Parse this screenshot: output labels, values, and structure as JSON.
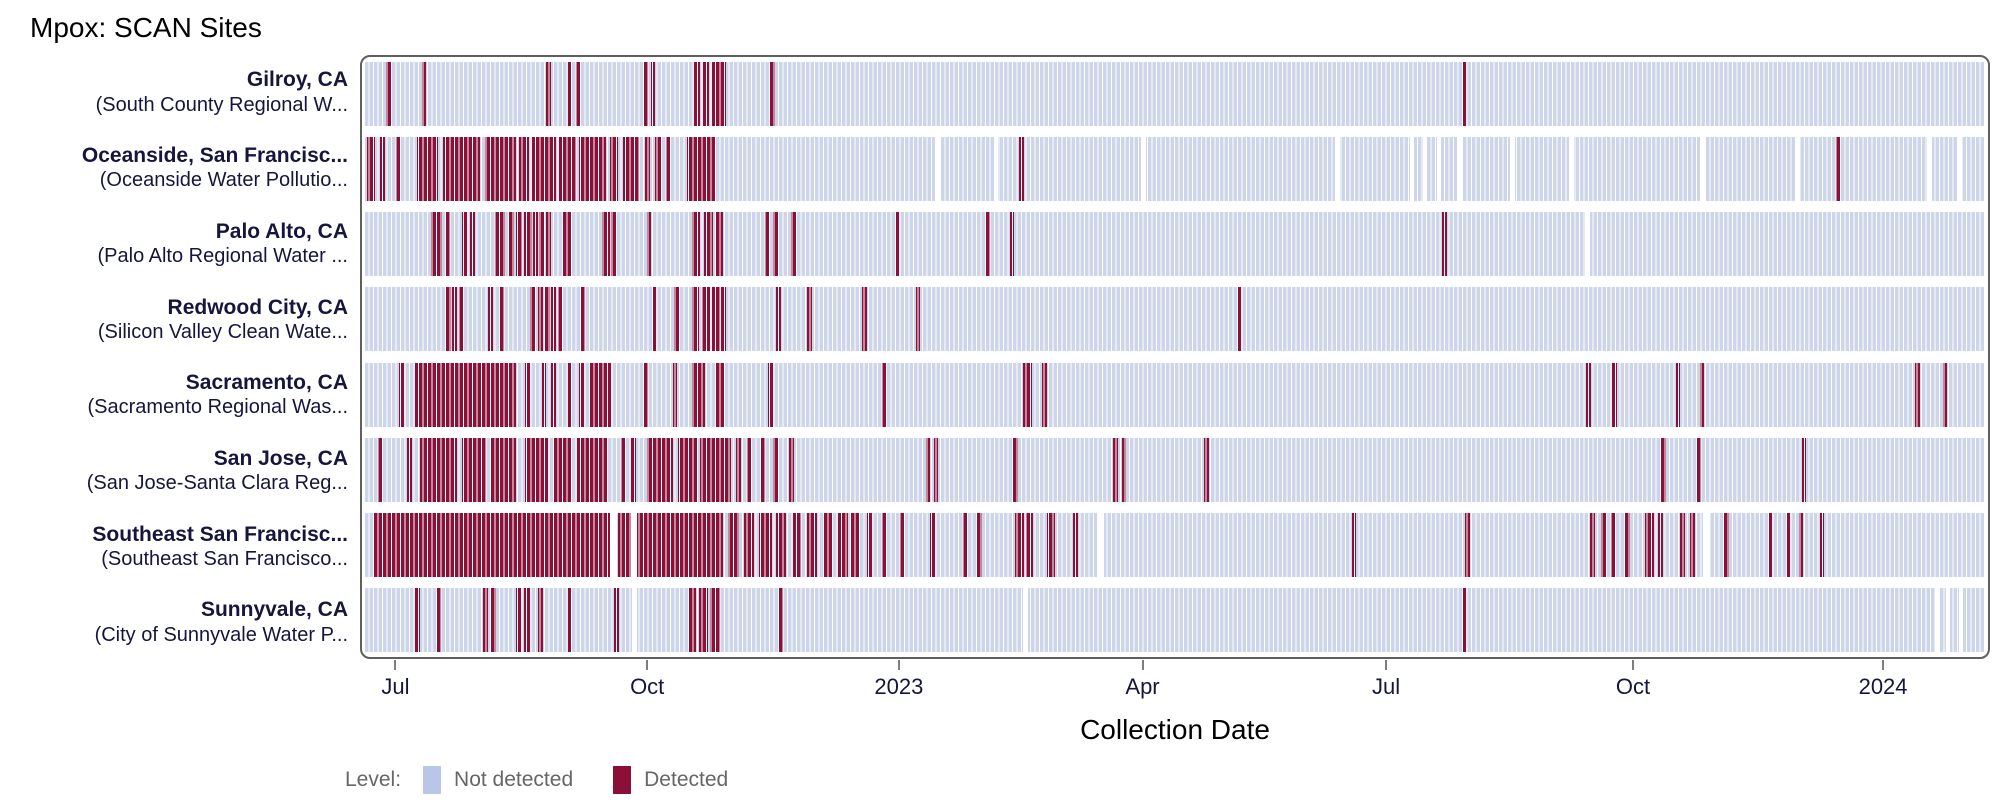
{
  "title": "Mpox: SCAN Sites",
  "xlabel": "Collection Date",
  "legend": {
    "label": "Level:",
    "items": [
      {
        "name": "Not detected",
        "color": "#b9c6e8"
      },
      {
        "name": "Detected",
        "color": "#8a1038"
      }
    ]
  },
  "colors": {
    "not_detected_strip": "#ccd5ea",
    "detected": "#8a1038",
    "missing": "#ffffff",
    "label_text": "#15153d",
    "border": "#5f5f5f"
  },
  "chart_data": {
    "type": "heatmap",
    "title": "Mpox: SCAN Sites",
    "xlabel": "Collection Date",
    "x_axis": {
      "range_note": "daily samples, ~Jun 2022 to ~Feb 2024",
      "ticks": [
        {
          "label": "Jul",
          "pos_pct": 2.0
        },
        {
          "label": "Oct",
          "pos_pct": 17.5
        },
        {
          "label": "2023",
          "pos_pct": 33.0
        },
        {
          "label": "Apr",
          "pos_pct": 48.0
        },
        {
          "label": "Jul",
          "pos_pct": 63.0
        },
        {
          "label": "Oct",
          "pos_pct": 78.2
        },
        {
          "label": "2024",
          "pos_pct": 93.6
        }
      ]
    },
    "legend_entries": [
      "Not detected",
      "Detected"
    ],
    "rows": [
      {
        "site": "Gilroy, CA",
        "facility": "(South County Regional W...",
        "detected_pct": [
          [
            1.3,
            0.28
          ],
          [
            3.5,
            0.28
          ],
          [
            11.2,
            0.28
          ],
          [
            12.5,
            0.28
          ],
          [
            13.0,
            0.28
          ],
          [
            17.2,
            0.28
          ],
          [
            17.65,
            0.28
          ],
          [
            20.3,
            0.35
          ],
          [
            20.85,
            0.4
          ],
          [
            21.4,
            0.55
          ],
          [
            22.0,
            0.3
          ],
          [
            25.0,
            0.28
          ],
          [
            67.7,
            0.28
          ]
        ],
        "missing_pct": []
      },
      {
        "site": "Oceanside, San Francisc...",
        "facility": "(Oceanside Water Pollutio...",
        "detected_pct": [
          [
            0.1,
            0.5
          ],
          [
            0.9,
            0.35
          ],
          [
            1.9,
            0.3
          ],
          [
            3.2,
            1.3
          ],
          [
            4.8,
            2.3
          ],
          [
            7.4,
            1.9
          ],
          [
            9.5,
            0.6
          ],
          [
            10.3,
            1.5
          ],
          [
            12.0,
            1.0
          ],
          [
            13.2,
            1.7
          ],
          [
            15.1,
            0.5
          ],
          [
            15.9,
            1.0
          ],
          [
            17.3,
            0.3
          ],
          [
            17.9,
            0.45
          ],
          [
            18.6,
            0.3
          ],
          [
            19.9,
            1.7
          ],
          [
            40.4,
            0.28
          ],
          [
            90.8,
            0.28
          ]
        ],
        "missing_pct": [
          [
            35.2,
            0.3
          ],
          [
            38.8,
            0.3
          ],
          [
            47.9,
            0.3
          ],
          [
            59.9,
            0.3
          ],
          [
            64.5,
            0.25
          ],
          [
            65.3,
            0.25
          ],
          [
            66.2,
            0.25
          ],
          [
            67.4,
            0.3
          ],
          [
            70.7,
            0.3
          ],
          [
            74.3,
            0.3
          ],
          [
            82.4,
            0.3
          ],
          [
            88.3,
            0.3
          ],
          [
            96.4,
            0.3
          ],
          [
            98.3,
            0.3
          ]
        ]
      },
      {
        "site": "Palo Alto, CA",
        "facility": "(Palo Alto Regional Water ...",
        "detected_pct": [
          [
            4.1,
            0.28
          ],
          [
            4.45,
            0.28
          ],
          [
            4.95,
            0.28
          ],
          [
            6.0,
            0.28
          ],
          [
            6.5,
            0.28
          ],
          [
            8.0,
            0.28
          ],
          [
            8.35,
            0.28
          ],
          [
            8.9,
            0.3
          ],
          [
            9.3,
            0.4
          ],
          [
            9.8,
            0.5
          ],
          [
            10.4,
            0.3
          ],
          [
            10.75,
            0.3
          ],
          [
            11.2,
            0.3
          ],
          [
            12.2,
            0.5
          ],
          [
            14.6,
            0.5
          ],
          [
            15.2,
            0.3
          ],
          [
            17.4,
            0.28
          ],
          [
            20.2,
            0.5
          ],
          [
            20.9,
            0.6
          ],
          [
            21.6,
            0.5
          ],
          [
            24.7,
            0.28
          ],
          [
            25.2,
            0.28
          ],
          [
            26.3,
            0.28
          ],
          [
            32.7,
            0.28
          ],
          [
            38.3,
            0.28
          ],
          [
            39.8,
            0.28
          ],
          [
            66.5,
            0.28
          ]
        ],
        "missing_pct": [
          [
            75.3,
            0.3
          ]
        ]
      },
      {
        "site": "Redwood City, CA",
        "facility": "(Silicon Valley Clean Wate...",
        "detected_pct": [
          [
            5.0,
            0.3
          ],
          [
            5.4,
            0.3
          ],
          [
            5.8,
            0.3
          ],
          [
            7.6,
            0.28
          ],
          [
            8.3,
            0.28
          ],
          [
            10.2,
            0.28
          ],
          [
            10.7,
            0.3
          ],
          [
            11.1,
            0.3
          ],
          [
            11.5,
            0.3
          ],
          [
            11.9,
            0.3
          ],
          [
            13.3,
            0.28
          ],
          [
            17.7,
            0.28
          ],
          [
            19.1,
            0.28
          ],
          [
            20.2,
            0.4
          ],
          [
            20.8,
            0.5
          ],
          [
            21.4,
            0.5
          ],
          [
            22.0,
            0.3
          ],
          [
            25.4,
            0.28
          ],
          [
            27.3,
            0.28
          ],
          [
            30.7,
            0.28
          ],
          [
            34.0,
            0.28
          ],
          [
            53.8,
            0.28
          ]
        ],
        "missing_pct": []
      },
      {
        "site": "Sacramento, CA",
        "facility": "(Sacramento Regional Was...",
        "detected_pct": [
          [
            2.1,
            0.28
          ],
          [
            3.1,
            6.2
          ],
          [
            9.9,
            0.3
          ],
          [
            10.9,
            0.3
          ],
          [
            11.5,
            0.3
          ],
          [
            12.5,
            0.3
          ],
          [
            13.2,
            0.3
          ],
          [
            13.8,
            1.4
          ],
          [
            17.2,
            0.28
          ],
          [
            19.0,
            0.28
          ],
          [
            20.2,
            0.8
          ],
          [
            21.6,
            0.55
          ],
          [
            24.9,
            0.28
          ],
          [
            31.9,
            0.28
          ],
          [
            40.6,
            0.55
          ],
          [
            41.8,
            0.28
          ],
          [
            75.4,
            0.28
          ],
          [
            77.0,
            0.28
          ],
          [
            80.9,
            0.28
          ],
          [
            82.4,
            0.28
          ],
          [
            95.7,
            0.28
          ],
          [
            97.4,
            0.28
          ]
        ],
        "missing_pct": []
      },
      {
        "site": "San Jose, CA",
        "facility": "(San Jose-Santa Clara Reg...",
        "detected_pct": [
          [
            0.8,
            0.28
          ],
          [
            2.6,
            0.3
          ],
          [
            3.4,
            2.3
          ],
          [
            6.0,
            1.5
          ],
          [
            7.7,
            1.6
          ],
          [
            9.9,
            1.4
          ],
          [
            11.6,
            1.2
          ],
          [
            13.1,
            1.9
          ],
          [
            15.8,
            0.3
          ],
          [
            16.4,
            0.3
          ],
          [
            17.4,
            1.6
          ],
          [
            19.3,
            1.2
          ],
          [
            20.7,
            1.9
          ],
          [
            22.9,
            0.3
          ],
          [
            23.6,
            0.3
          ],
          [
            24.4,
            0.3
          ],
          [
            25.2,
            0.3
          ],
          [
            26.2,
            0.3
          ],
          [
            34.6,
            0.28
          ],
          [
            35.1,
            0.28
          ],
          [
            40.0,
            0.28
          ],
          [
            46.2,
            0.28
          ],
          [
            46.7,
            0.28
          ],
          [
            51.8,
            0.28
          ],
          [
            80.0,
            0.28
          ],
          [
            82.2,
            0.28
          ],
          [
            88.7,
            0.28
          ]
        ],
        "missing_pct": []
      },
      {
        "site": "Southeast San Francisc...",
        "facility": "(Southeast San Francisco...",
        "detected_pct": [
          [
            0.5,
            14.6
          ],
          [
            15.6,
            0.8
          ],
          [
            16.8,
            5.3
          ],
          [
            22.4,
            0.7
          ],
          [
            23.4,
            0.6
          ],
          [
            24.3,
            0.8
          ],
          [
            25.4,
            0.6
          ],
          [
            26.4,
            0.5
          ],
          [
            27.3,
            0.6
          ],
          [
            28.3,
            0.5
          ],
          [
            29.2,
            0.6
          ],
          [
            30.0,
            0.5
          ],
          [
            31.0,
            0.3
          ],
          [
            31.9,
            0.3
          ],
          [
            33.0,
            0.3
          ],
          [
            34.9,
            0.3
          ],
          [
            36.9,
            0.3
          ],
          [
            37.8,
            0.3
          ],
          [
            40.1,
            0.55
          ],
          [
            40.8,
            0.45
          ],
          [
            42.1,
            0.5
          ],
          [
            43.7,
            0.3
          ],
          [
            60.9,
            0.28
          ],
          [
            67.9,
            0.28
          ],
          [
            75.6,
            0.3
          ],
          [
            76.3,
            0.3
          ],
          [
            76.9,
            0.3
          ],
          [
            77.8,
            0.3
          ],
          [
            79.0,
            0.55
          ],
          [
            79.8,
            0.3
          ],
          [
            81.2,
            0.3
          ],
          [
            81.8,
            0.3
          ],
          [
            83.9,
            0.3
          ],
          [
            86.6,
            0.28
          ],
          [
            87.7,
            0.28
          ],
          [
            88.5,
            0.28
          ],
          [
            89.8,
            0.28
          ]
        ],
        "missing_pct": [
          [
            15.1,
            0.4
          ],
          [
            16.4,
            0.4
          ],
          [
            45.2,
            0.4
          ],
          [
            82.6,
            0.4
          ]
        ]
      },
      {
        "site": "Sunnyvale, CA",
        "facility": "(City of Sunnyvale Water P...",
        "detected_pct": [
          [
            3.1,
            0.28
          ],
          [
            4.4,
            0.28
          ],
          [
            7.3,
            0.28
          ],
          [
            7.8,
            0.28
          ],
          [
            9.3,
            0.3
          ],
          [
            9.8,
            0.4
          ],
          [
            10.7,
            0.28
          ],
          [
            12.5,
            0.28
          ],
          [
            15.4,
            0.28
          ],
          [
            20.0,
            0.45
          ],
          [
            20.6,
            0.6
          ],
          [
            21.3,
            0.6
          ],
          [
            25.5,
            0.28
          ],
          [
            67.7,
            0.28
          ]
        ],
        "missing_pct": [
          [
            16.5,
            0.3
          ],
          [
            40.6,
            0.3
          ],
          [
            96.9,
            0.25
          ],
          [
            97.6,
            0.25
          ],
          [
            98.4,
            0.25
          ]
        ]
      }
    ]
  }
}
